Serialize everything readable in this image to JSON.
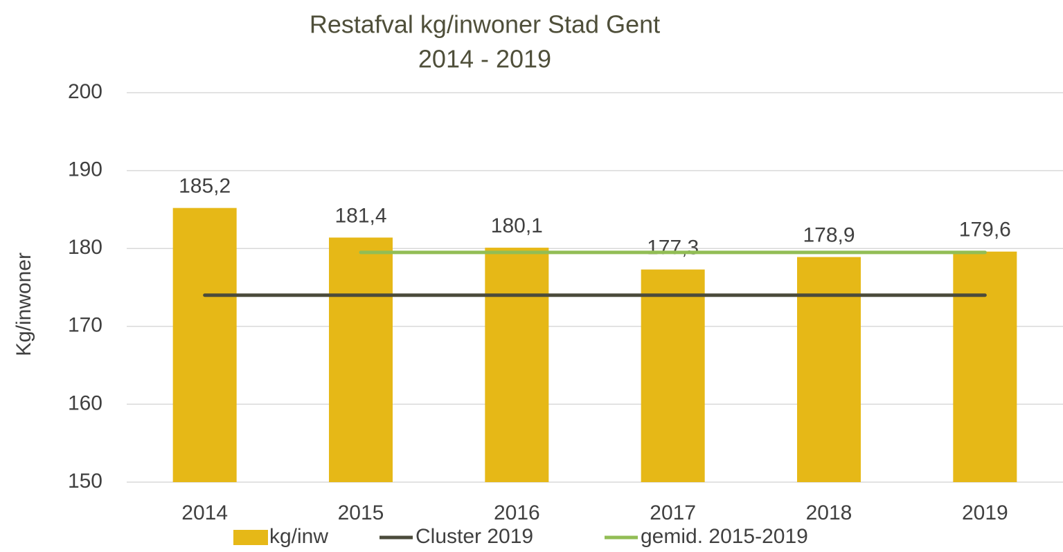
{
  "chart_data": {
    "type": "bar",
    "title": "Restafval kg/inwoner Stad Gent",
    "subtitle": "2014 - 2019",
    "y_label": "Kg/inwoner",
    "categories": [
      "2014",
      "2015",
      "2016",
      "2017",
      "2018",
      "2019"
    ],
    "series": [
      {
        "name": "kg/inw",
        "type": "bar",
        "color": "#e6b817",
        "values": [
          185.2,
          181.4,
          180.1,
          177.3,
          178.9,
          179.6
        ],
        "value_labels": [
          "185,2",
          "181,4",
          "180,1",
          "177,3",
          "178,9",
          "179,6"
        ]
      },
      {
        "name": "Cluster 2019",
        "type": "line",
        "color": "#4b4b3b",
        "values": [
          174,
          174,
          174,
          174,
          174,
          174
        ]
      },
      {
        "name": "gemid. 2015-2019",
        "type": "line",
        "color": "#92bd55",
        "values": [
          null,
          179.5,
          179.5,
          179.5,
          179.5,
          179.5
        ]
      }
    ],
    "ylim": [
      150,
      200
    ],
    "yticks": [
      150,
      160,
      170,
      180,
      190,
      200
    ],
    "grid": true,
    "legend": "bottom"
  }
}
